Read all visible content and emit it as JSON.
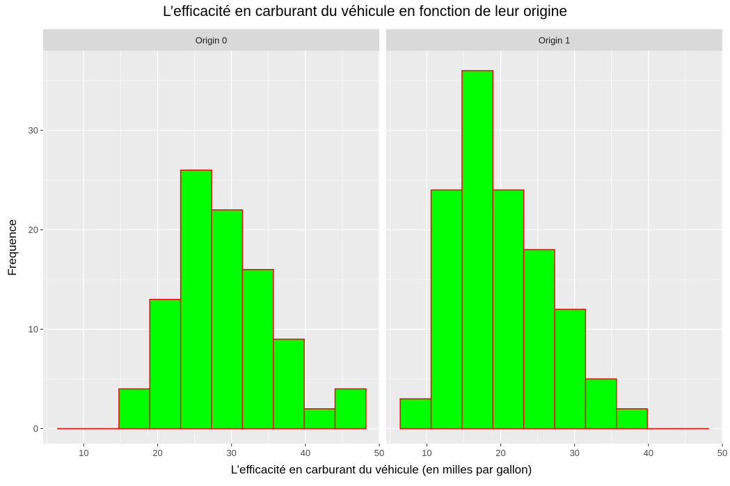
{
  "chart_data": {
    "type": "bar",
    "title": "L’efficacité en carburant du véhicule en fonction de leur origine",
    "xlabel": "L’efficacité en carburant du véhicule (en milles par gallon)",
    "ylabel": "Frequence",
    "xlim": [
      4.5,
      50
    ],
    "ylim": [
      -1.5,
      38
    ],
    "x_ticks": [
      10,
      20,
      30,
      40,
      50
    ],
    "y_ticks": [
      0,
      10,
      20,
      30
    ],
    "grid": true,
    "bar_fill": "#00FF00",
    "bar_stroke": "#FF0000",
    "panel_background": "#EBEBEB",
    "strip_background": "#D9D9D9",
    "bins": [
      [
        6.4,
        10.58
      ],
      [
        10.58,
        14.76
      ],
      [
        14.76,
        18.94
      ],
      [
        18.94,
        23.12
      ],
      [
        23.12,
        27.3
      ],
      [
        27.3,
        31.48
      ],
      [
        31.48,
        35.66
      ],
      [
        35.66,
        39.84
      ],
      [
        39.84,
        44.02
      ],
      [
        44.02,
        48.2
      ]
    ],
    "panels": [
      {
        "label": "Origin 0",
        "values": [
          0,
          0,
          4,
          13,
          26,
          22,
          16,
          9,
          2,
          4
        ]
      },
      {
        "label": "Origin 1",
        "values": [
          3,
          24,
          36,
          24,
          18,
          12,
          5,
          2,
          0,
          0
        ]
      }
    ]
  }
}
